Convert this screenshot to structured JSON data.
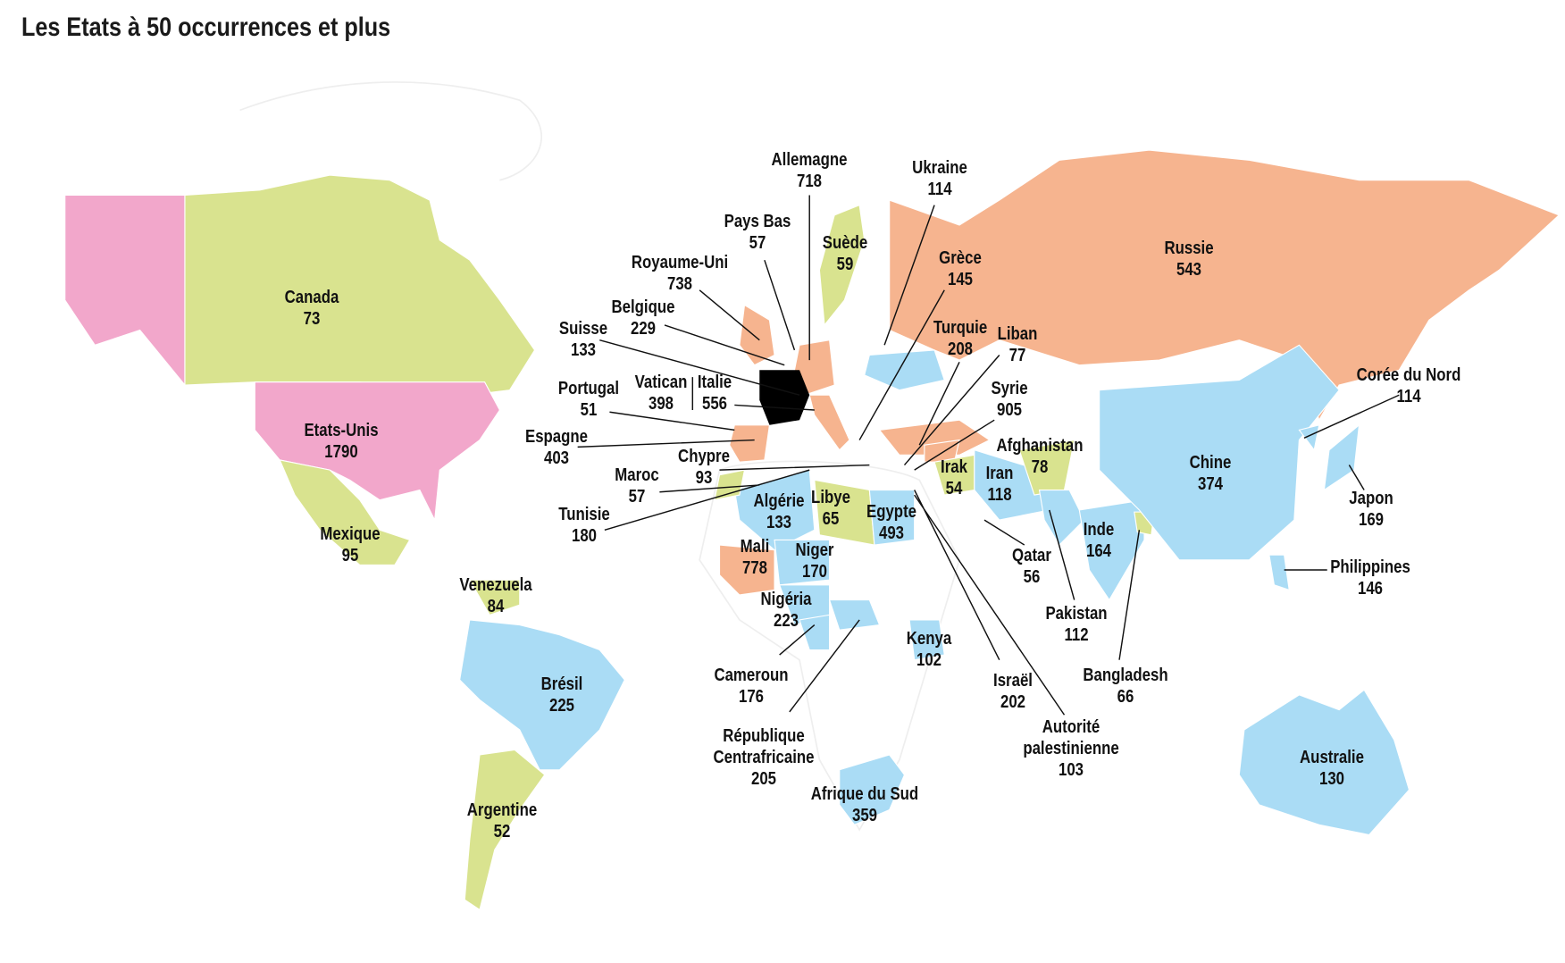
{
  "title": "Les Etats à 50 occurrences et plus",
  "countries": [
    {
      "name": "Canada",
      "value": 73,
      "color": "#d9e38f"
    },
    {
      "name": "Etats-Unis",
      "value": 1790,
      "color": "#f2a7cb"
    },
    {
      "name": "Mexique",
      "value": 95,
      "color": "#d9e38f"
    },
    {
      "name": "Venezuela",
      "value": 84,
      "color": "#d9e38f"
    },
    {
      "name": "Brésil",
      "value": 225,
      "color": "#aadcf5"
    },
    {
      "name": "Argentine",
      "value": 52,
      "color": "#d9e38f"
    },
    {
      "name": "Allemagne",
      "value": 718,
      "color": "#f6b48f"
    },
    {
      "name": "Pays Bas",
      "value": 57,
      "color": "#d9e38f"
    },
    {
      "name": "Suède",
      "value": 59,
      "color": "#d9e38f"
    },
    {
      "name": "Royaume-Uni",
      "value": 738,
      "color": "#f6b48f"
    },
    {
      "name": "Belgique",
      "value": 229,
      "color": "#aadcf5"
    },
    {
      "name": "Suisse",
      "value": 133,
      "color": "#aadcf5"
    },
    {
      "name": "Portugal",
      "value": 51,
      "color": "#d9e38f"
    },
    {
      "name": "Vatican",
      "value": 398,
      "color": "#aadcf5"
    },
    {
      "name": "Italie",
      "value": 556,
      "color": "#f6b48f"
    },
    {
      "name": "Espagne",
      "value": 403,
      "color": "#f6b48f"
    },
    {
      "name": "Chypre",
      "value": 93,
      "color": "#d9e38f"
    },
    {
      "name": "Maroc",
      "value": 57,
      "color": "#d9e38f"
    },
    {
      "name": "Tunisie",
      "value": 180,
      "color": "#aadcf5"
    },
    {
      "name": "Algérie",
      "value": 133,
      "color": "#aadcf5"
    },
    {
      "name": "Libye",
      "value": 65,
      "color": "#d9e38f"
    },
    {
      "name": "Egypte",
      "value": 493,
      "color": "#aadcf5"
    },
    {
      "name": "Mali",
      "value": 778,
      "color": "#f6b48f"
    },
    {
      "name": "Niger",
      "value": 170,
      "color": "#aadcf5"
    },
    {
      "name": "Nigéria",
      "value": 223,
      "color": "#aadcf5"
    },
    {
      "name": "Cameroun",
      "value": 176,
      "color": "#aadcf5"
    },
    {
      "name": "République Centrafricaine",
      "value": 205,
      "color": "#aadcf5"
    },
    {
      "name": "Afrique du Sud",
      "value": 359,
      "color": "#aadcf5"
    },
    {
      "name": "Kenya",
      "value": 102,
      "color": "#aadcf5"
    },
    {
      "name": "Ukraine",
      "value": 114,
      "color": "#aadcf5"
    },
    {
      "name": "Grèce",
      "value": 145,
      "color": "#aadcf5"
    },
    {
      "name": "Turquie",
      "value": 208,
      "color": "#f6b48f"
    },
    {
      "name": "Liban",
      "value": 77,
      "color": "#d9e38f"
    },
    {
      "name": "Syrie",
      "value": 905,
      "color": "#f6b48f"
    },
    {
      "name": "Afghanistan",
      "value": 78,
      "color": "#d9e38f"
    },
    {
      "name": "Irak",
      "value": 54,
      "color": "#d9e38f"
    },
    {
      "name": "Iran",
      "value": 118,
      "color": "#aadcf5"
    },
    {
      "name": "Qatar",
      "value": 56,
      "color": "#d9e38f"
    },
    {
      "name": "Pakistan",
      "value": 112,
      "color": "#aadcf5"
    },
    {
      "name": "Inde",
      "value": 164,
      "color": "#aadcf5"
    },
    {
      "name": "Bangladesh",
      "value": 66,
      "color": "#d9e38f"
    },
    {
      "name": "Israël",
      "value": 202,
      "color": "#aadcf5"
    },
    {
      "name": "Autorité palestinienne",
      "value": 103,
      "color": "#aadcf5"
    },
    {
      "name": "Russie",
      "value": 543,
      "color": "#f6b48f"
    },
    {
      "name": "Chine",
      "value": 374,
      "color": "#aadcf5"
    },
    {
      "name": "Corée du Nord",
      "value": 114,
      "color": "#aadcf5"
    },
    {
      "name": "Japon",
      "value": 169,
      "color": "#aadcf5"
    },
    {
      "name": "Philippines",
      "value": 146,
      "color": "#aadcf5"
    },
    {
      "name": "Australie",
      "value": 130,
      "color": "#aadcf5"
    }
  ]
}
